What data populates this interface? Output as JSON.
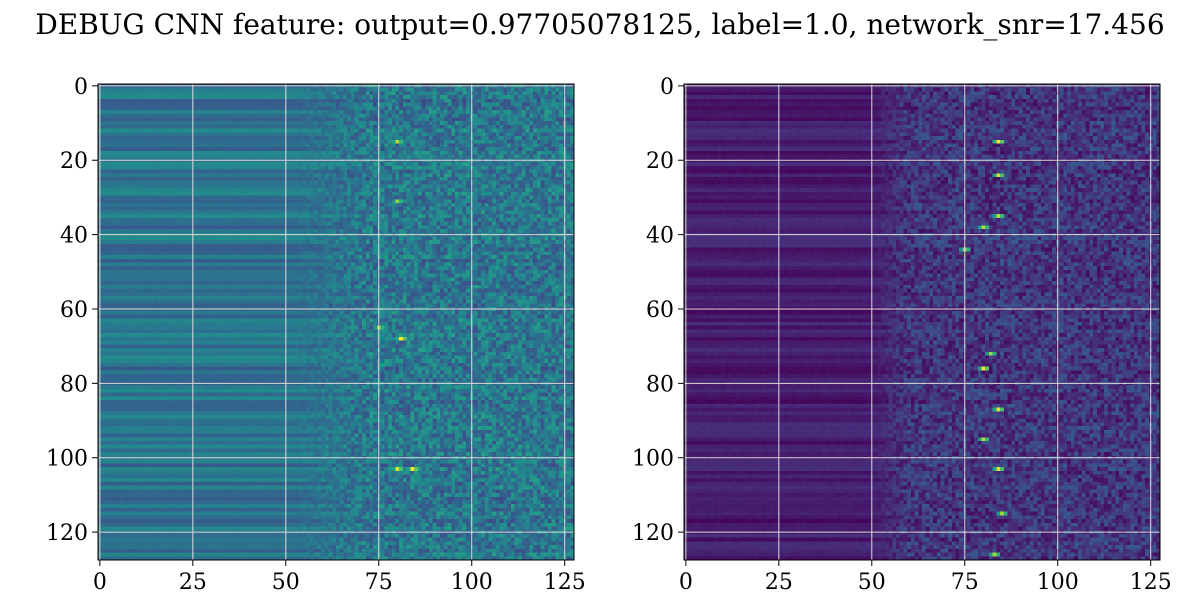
{
  "title": "DEBUG CNN feature: output=0.97705078125, label=1.0, network_snr=17.456",
  "chart_data": [
    {
      "type": "heatmap",
      "colormap": "viridis",
      "rows": 128,
      "cols": 128,
      "xlim": [
        0,
        127
      ],
      "ylim": [
        127,
        0
      ],
      "xticks": [
        0,
        25,
        50,
        75,
        100,
        125
      ],
      "yticks": [
        0,
        20,
        40,
        60,
        80,
        100,
        120
      ],
      "grid": true,
      "value_range": [
        0,
        1
      ],
      "pattern": {
        "left_region_end_col": 50,
        "left_base": 0.38,
        "left_row_variation": 0.1,
        "noise_start_col": 60,
        "right_mean": 0.4,
        "right_noise": 0.15,
        "hotspots": [
          {
            "row": 15,
            "col": 80,
            "value": 0.9
          },
          {
            "row": 31,
            "col": 80,
            "value": 0.85
          },
          {
            "row": 65,
            "col": 75,
            "value": 0.85
          },
          {
            "row": 68,
            "col": 81,
            "value": 1.0
          },
          {
            "row": 103,
            "col": 80,
            "value": 0.95
          },
          {
            "row": 103,
            "col": 84,
            "value": 1.0
          }
        ]
      }
    },
    {
      "type": "heatmap",
      "colormap": "viridis",
      "rows": 128,
      "cols": 128,
      "xlim": [
        0,
        127
      ],
      "ylim": [
        127,
        0
      ],
      "xticks": [
        0,
        25,
        50,
        75,
        100,
        125
      ],
      "yticks": [
        0,
        20,
        40,
        60,
        80,
        100,
        120
      ],
      "grid": true,
      "value_range": [
        0,
        1
      ],
      "pattern": {
        "left_region_end_col": 50,
        "left_base": 0.08,
        "left_row_variation": 0.06,
        "noise_start_col": 48,
        "right_mean": 0.16,
        "right_noise": 0.12,
        "hotspots": [
          {
            "row": 15,
            "col": 84,
            "value": 1.0
          },
          {
            "row": 24,
            "col": 84,
            "value": 0.95
          },
          {
            "row": 35,
            "col": 84,
            "value": 0.9
          },
          {
            "row": 38,
            "col": 80,
            "value": 0.9
          },
          {
            "row": 44,
            "col": 75,
            "value": 0.85
          },
          {
            "row": 72,
            "col": 82,
            "value": 0.85
          },
          {
            "row": 76,
            "col": 80,
            "value": 1.0
          },
          {
            "row": 87,
            "col": 84,
            "value": 0.95
          },
          {
            "row": 95,
            "col": 80,
            "value": 0.9
          },
          {
            "row": 103,
            "col": 84,
            "value": 0.95
          },
          {
            "row": 115,
            "col": 85,
            "value": 0.85
          },
          {
            "row": 126,
            "col": 83,
            "value": 0.85
          }
        ]
      }
    }
  ]
}
